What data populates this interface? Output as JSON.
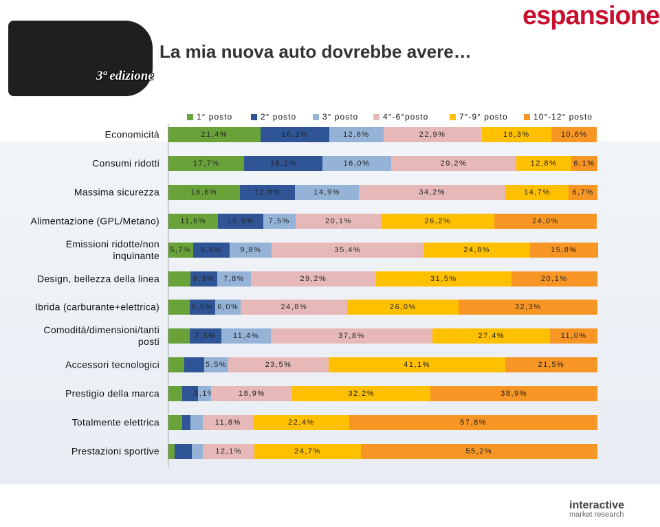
{
  "brand": "espansione",
  "edition_badge": "3ª edizione",
  "footer_logo": [
    "interactive",
    "market research"
  ],
  "chart_data": {
    "type": "stacked-bar-horizontal",
    "title": "La mia nuova auto dovrebbe avere…",
    "categories": [
      "Economicità",
      "Consumi ridotti",
      "Massima sicurezza",
      "Alimentazione (GPL/Metano)",
      "Emissioni ridotte/non inquinante",
      "Design, bellezza della linea",
      "Ibrida (carburante+elettrica)",
      "Comodità/dimensioni/tanti posti",
      "Accessori tecnologici",
      "Prestigio della marca",
      "Totalmente elettrica",
      "Prestazioni sportive"
    ],
    "xlim": [
      0,
      100
    ],
    "series": [
      {
        "name": "1° posto",
        "color": "#6aa23a",
        "values": [
          21.4,
          17.7,
          16.6,
          11.6,
          5.7,
          5.1,
          4.9,
          4.9,
          3.7,
          3.2,
          3.2,
          1.4
        ],
        "value_labels": [
          "21,4%",
          "17,7%",
          "16,6%",
          "11,6%",
          "5,7%",
          null,
          null,
          null,
          null,
          null,
          null,
          null
        ]
      },
      {
        "name": "2° posto",
        "color": "#2f5597",
        "values": [
          16.1,
          18.2,
          12.9,
          10.5,
          8.6,
          6.3,
          6.0,
          7.5,
          4.7,
          3.7,
          1.9,
          4.0
        ],
        "value_labels": [
          "16,1%",
          "18,2%",
          "12,9%",
          "10,5%",
          "8,6%",
          "6,3%",
          "6,0%",
          "7,5%",
          null,
          null,
          null,
          null
        ]
      },
      {
        "name": "3° posto",
        "color": "#95b3d7",
        "values": [
          12.6,
          16.0,
          14.9,
          7.5,
          9.8,
          7.8,
          6.0,
          11.4,
          5.5,
          3.1,
          2.9,
          2.6
        ],
        "value_labels": [
          "12,6%",
          "16,0%",
          "14,9%",
          "7,5%",
          "9,8%",
          "7,8%",
          "6,0%",
          "11,4%",
          "5,5%",
          "3,1%",
          null,
          null
        ]
      },
      {
        "name": "4°-6°posto",
        "color": "#e6b9b8",
        "values": [
          22.9,
          29.2,
          34.2,
          20.1,
          35.4,
          29.2,
          24.8,
          37.8,
          23.5,
          18.9,
          11.8,
          12.1
        ],
        "value_labels": [
          "22,9%",
          "29,2%",
          "34,2%",
          "20,1%",
          "35,4%",
          "29,2%",
          "24,8%",
          "37,8%",
          "23,5%",
          "18,9%",
          "11,8%",
          "12,1%"
        ]
      },
      {
        "name": "7°-9° posto",
        "color": "#ffc000",
        "values": [
          16.3,
          12.8,
          14.7,
          26.2,
          24.8,
          31.5,
          26.0,
          27.4,
          41.1,
          32.2,
          22.4,
          24.7
        ],
        "value_labels": [
          "16,3%",
          "12,8%",
          "14,7%",
          "26,2%",
          "24,8%",
          "31,5%",
          "26,0%",
          "27,4%",
          "41,1%",
          "32,2%",
          "22,4%",
          "24,7%"
        ]
      },
      {
        "name": "10°-12° posto",
        "color": "#f79625",
        "values": [
          10.6,
          6.1,
          6.7,
          24.0,
          15.8,
          20.1,
          32.3,
          11.0,
          21.5,
          38.9,
          57.8,
          55.2
        ],
        "value_labels": [
          "10,6%",
          "6,1%",
          "6,7%",
          "24,0%",
          "15,8%",
          "20,1%",
          "32,3%",
          "11,0%",
          "21,5%",
          "38,9%",
          "57,8%",
          "55,2%"
        ]
      }
    ]
  }
}
